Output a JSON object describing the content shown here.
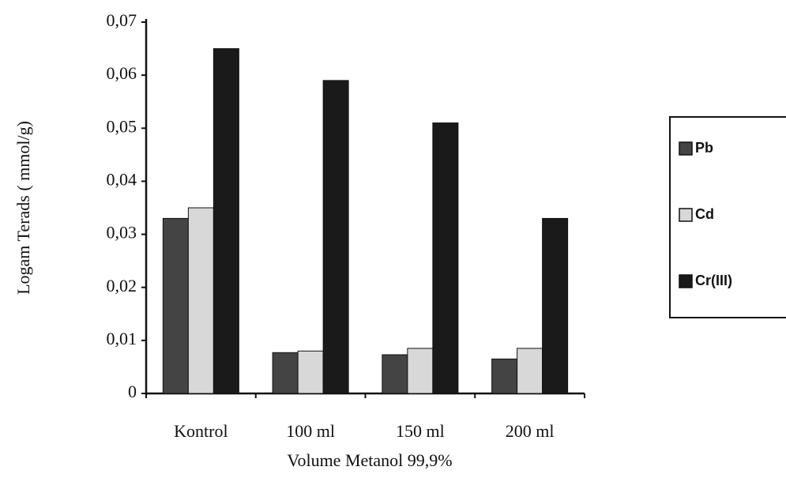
{
  "chart_data": {
    "type": "bar",
    "x_label": "Volume Metanol 99,9%",
    "y_label": "Logam Terads ( mmol/g)",
    "categories": [
      "Kontrol",
      "100 ml",
      "150 ml",
      "200 ml"
    ],
    "series": [
      {
        "name": "Pb",
        "color": "#444444",
        "values": [
          0.033,
          0.0077,
          0.0073,
          0.0065
        ]
      },
      {
        "name": "Cd",
        "color": "#d8d8d8",
        "values": [
          0.035,
          0.008,
          0.0085,
          0.0085
        ]
      },
      {
        "name": "Cr(III)",
        "color": "#1a1a1a",
        "values": [
          0.065,
          0.059,
          0.051,
          0.033
        ]
      }
    ],
    "ylim": [
      0,
      0.07
    ],
    "yticks": [
      0,
      {
        "value": 0.01,
        "label": "0,01"
      },
      {
        "value": 0.02,
        "label": "0,02"
      },
      {
        "value": 0.03,
        "label": "0,03"
      },
      {
        "value": 0.04,
        "label": "0,04"
      },
      {
        "value": 0.05,
        "label": "0,05"
      },
      {
        "value": 0.06,
        "label": "0,06"
      },
      {
        "value": 0.07,
        "label": "0,07"
      }
    ]
  }
}
